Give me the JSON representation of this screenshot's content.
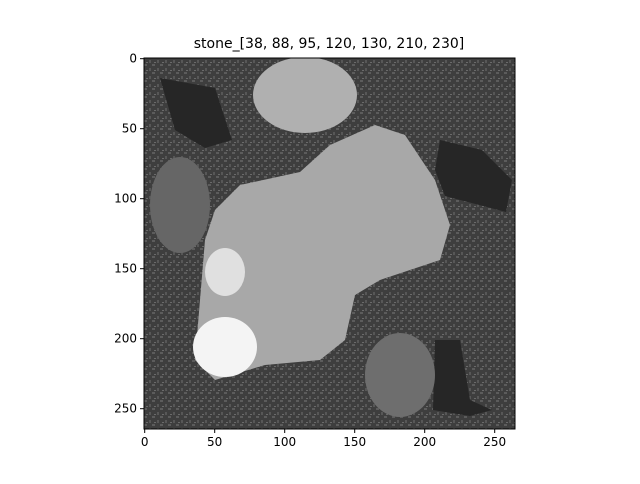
{
  "chart_data": {
    "type": "image",
    "title": "stone_[38, 88, 95, 120, 130, 210, 230]",
    "xlim": [
      -0.5,
      264.5
    ],
    "ylim": [
      264.5,
      -0.5
    ],
    "xticks": [
      0,
      50,
      100,
      150,
      200,
      250
    ],
    "yticks": [
      0,
      50,
      100,
      150,
      200,
      250
    ]
  }
}
